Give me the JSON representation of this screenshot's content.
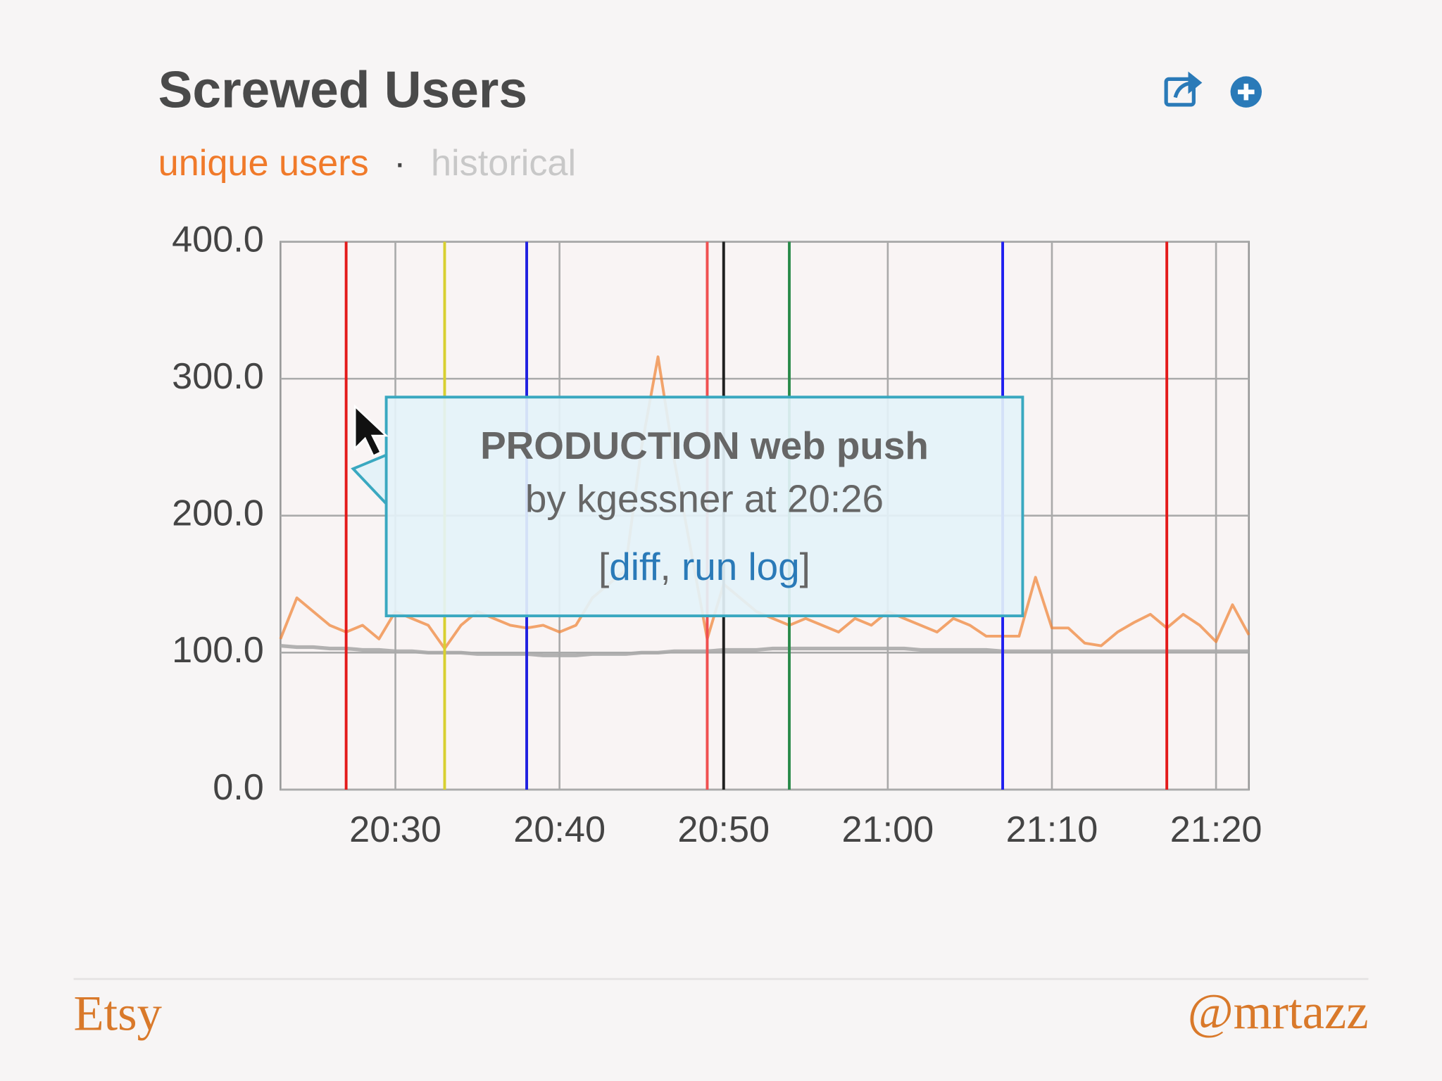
{
  "chart_data": {
    "type": "line",
    "title": "Screwed Users",
    "legend_separator": "·",
    "x": [
      "20:23",
      "20:24",
      "20:25",
      "20:26",
      "20:27",
      "20:28",
      "20:29",
      "20:30",
      "20:31",
      "20:32",
      "20:33",
      "20:34",
      "20:35",
      "20:36",
      "20:37",
      "20:38",
      "20:39",
      "20:40",
      "20:41",
      "20:42",
      "20:43",
      "20:44",
      "20:45",
      "20:46",
      "20:47",
      "20:48",
      "20:49",
      "20:50",
      "20:51",
      "20:52",
      "20:53",
      "20:54",
      "20:55",
      "20:56",
      "20:57",
      "20:58",
      "20:59",
      "21:00",
      "21:01",
      "21:02",
      "21:03",
      "21:04",
      "21:05",
      "21:06",
      "21:07",
      "21:08",
      "21:09",
      "21:10",
      "21:11",
      "21:12",
      "21:13",
      "21:14",
      "21:15",
      "21:16",
      "21:17",
      "21:18",
      "21:19",
      "21:20",
      "21:21",
      "21:22"
    ],
    "series": [
      {
        "name": "unique users",
        "color": "#f08030",
        "values": [
          110,
          140,
          130,
          120,
          115,
          120,
          110,
          130,
          125,
          120,
          103,
          120,
          130,
          125,
          120,
          118,
          120,
          115,
          120,
          140,
          150,
          160,
          250,
          316,
          240,
          175,
          110,
          150,
          140,
          130,
          125,
          120,
          125,
          120,
          115,
          125,
          120,
          130,
          125,
          120,
          115,
          125,
          120,
          112,
          112,
          112,
          155,
          118,
          118,
          107,
          105,
          115,
          122,
          128,
          118,
          128,
          120,
          108,
          135,
          113
        ]
      },
      {
        "name": "historical",
        "color": "#aaaaaa",
        "values": [
          105,
          104,
          104,
          103,
          103,
          102,
          102,
          101,
          101,
          100,
          100,
          100,
          99,
          99,
          99,
          99,
          98,
          98,
          98,
          99,
          99,
          99,
          100,
          100,
          101,
          101,
          101,
          102,
          102,
          102,
          103,
          103,
          103,
          103,
          103,
          103,
          103,
          103,
          103,
          102,
          102,
          102,
          102,
          102,
          101,
          101,
          101,
          101,
          101,
          101,
          101,
          101,
          101,
          101,
          101,
          101,
          101,
          101,
          101,
          101
        ]
      }
    ],
    "events": [
      {
        "x": "20:27",
        "color": "#e41a1a"
      },
      {
        "x": "20:33",
        "color": "#d8d030"
      },
      {
        "x": "20:38",
        "color": "#2020e0"
      },
      {
        "x": "20:49",
        "color": "#f05050"
      },
      {
        "x": "20:50",
        "color": "#202020"
      },
      {
        "x": "20:54",
        "color": "#2a8a4a"
      },
      {
        "x": "21:07",
        "color": "#2020f0"
      },
      {
        "x": "21:17",
        "color": "#e41a1a"
      }
    ],
    "xlim": [
      "20:23",
      "21:22"
    ],
    "xticks": [
      "20:30",
      "20:40",
      "20:50",
      "21:00",
      "21:10",
      "21:20"
    ],
    "ylim": [
      0,
      400
    ],
    "yticks": [
      {
        "value": 0,
        "label": "0.0"
      },
      {
        "value": 100,
        "label": "100.0"
      },
      {
        "value": 200,
        "label": "200.0"
      },
      {
        "value": 300,
        "label": "300.0"
      },
      {
        "value": 400,
        "label": "400.0"
      }
    ],
    "grid": true,
    "tooltip": {
      "title": "PRODUCTION web push",
      "subtitle": "by kgessner at 20:26",
      "open": "[",
      "links": [
        "diff",
        "run log"
      ],
      "separator": ", ",
      "close": "]"
    }
  },
  "footer": {
    "left": "Etsy",
    "right": "@mrtazz"
  }
}
